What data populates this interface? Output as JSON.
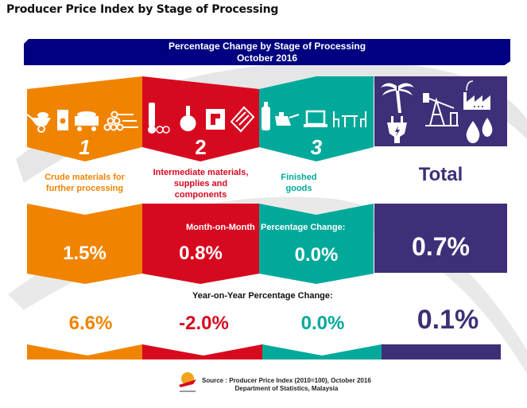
{
  "page_title": "Producer Price Index by Stage of Processing",
  "banner": {
    "title": "Percentage Change by Stage of Processing",
    "period": "October 2016"
  },
  "colors": {
    "banner": "#000080",
    "crude": "#F08400",
    "intermediate": "#D7091F",
    "finished": "#00A99A",
    "total": "#3F2F78"
  },
  "stages": [
    {
      "number": "1",
      "label": "Crude materials for further processing",
      "label_lines": [
        "Crude materials for",
        "further processing"
      ],
      "icons": [
        "wheelbarrow-icon",
        "oil-barrel-icon",
        "mine-cart-icon",
        "timber-logs-icon"
      ],
      "mom": "1.5%",
      "yoy": "6.6%"
    },
    {
      "number": "2",
      "label": "Intermediate materials, supplies and components",
      "label_lines": [
        "Intermediate materials,",
        "supplies and",
        "components"
      ],
      "icons": [
        "bottle-and-coins-icon",
        "flask-icon",
        "circuit-board-icon",
        "wood-plank-icon"
      ],
      "mom": "0.8%",
      "yoy": "-2.0%"
    },
    {
      "number": "3",
      "label": "Finished goods",
      "label_lines": [
        "Finished",
        "goods"
      ],
      "icons": [
        "cooking-oil-bottle-icon",
        "oil-can-icon",
        "laptop-icon",
        "table-chairs-icon"
      ],
      "mom": "0.0%",
      "yoy": "0.0%"
    }
  ],
  "total": {
    "label": "Total",
    "icons": [
      "palm-tree-icon",
      "oil-pump-icon",
      "factory-icon",
      "power-plug-icon",
      "water-drops-icon"
    ],
    "mom": "0.7%",
    "yoy": "0.1%"
  },
  "sections": {
    "mom_label_part1": "Month-on-Month",
    "mom_label_part2": "Percentage Change:",
    "yoy_label": "Year-on-Year Percentage Change:"
  },
  "source": {
    "line1": "Source : Producer Price Index (2010=100), October 2016",
    "line2": "Department of Statistics, Malaysia"
  }
}
